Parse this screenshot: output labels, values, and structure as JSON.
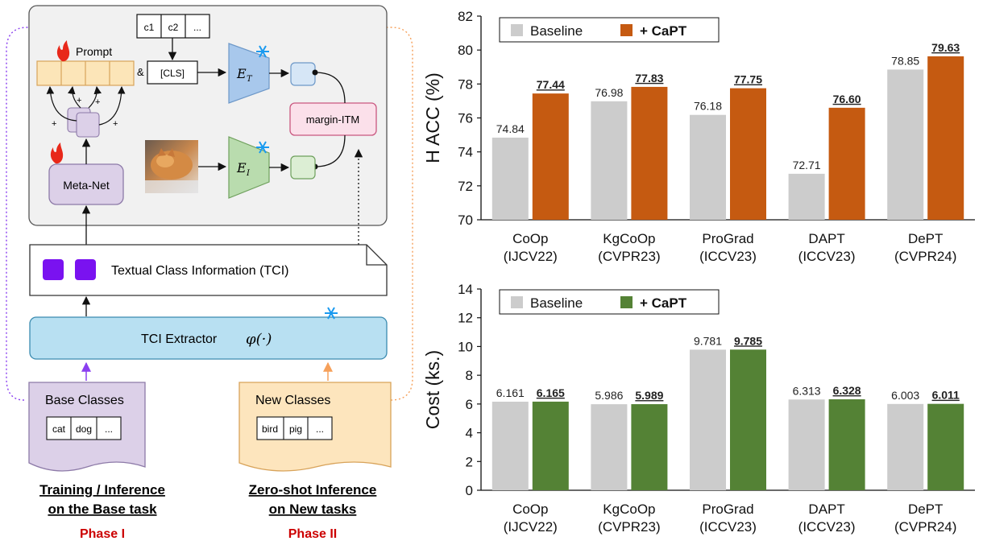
{
  "diagram": {
    "prompt_label": "Prompt",
    "and_symbol": "&",
    "cls_token": "[CLS]",
    "class_tokens": [
      "c1",
      "c2",
      "..."
    ],
    "plus": "+",
    "text_encoder": "E",
    "text_encoder_sub": "T",
    "image_encoder": "E",
    "image_encoder_sub": "I",
    "margin_itm": "margin-ITM",
    "meta_net": "Meta-Net",
    "tci_label": "Textual Class Information (TCI)",
    "extractor_label": "TCI Extractor",
    "extractor_func": "φ(·)",
    "base_title": "Base Classes",
    "base_items": [
      "cat",
      "dog",
      "..."
    ],
    "new_title": "New Classes",
    "new_items": [
      "bird",
      "pig",
      "..."
    ],
    "phase1_line1": "Training / Inference",
    "phase1_line2": "on the Base task",
    "phase1_label": "Phase I",
    "phase2_line1": "Zero-shot Inference",
    "phase2_line2": "on New tasks",
    "phase2_label": "Phase II",
    "colors": {
      "prompt": "#fce5b8",
      "encoder_t": "#a8c8ec",
      "encoder_i": "#b9dcae",
      "margin": "#fbe0ea",
      "meta": "#dcd0e8",
      "tci_square": "#7a12f0",
      "extractor": "#b8e0f2",
      "base": "#dcd0e8",
      "new": "#fde5bd",
      "fire": "#e8281a",
      "snow": "#1a9af0",
      "phase": "#cc0000"
    }
  },
  "chart_data": [
    {
      "type": "bar",
      "ylabel": "H ACC (%)",
      "ylim": [
        70,
        82
      ],
      "yticks": [
        70,
        72,
        74,
        76,
        78,
        80,
        82
      ],
      "categories": [
        "CoOp\n(IJCV22)",
        "KgCoOp\n(CVPR23)",
        "ProGrad\n(ICCV23)",
        "DAPT\n(ICCV23)",
        "DePT\n(CVPR24)"
      ],
      "series": [
        {
          "name": "Baseline",
          "values": [
            74.84,
            76.98,
            76.18,
            72.71,
            78.85
          ],
          "color": "#cccccc",
          "labels": [
            "74.84",
            "76.98",
            "76.18",
            "72.71",
            "78.85"
          ]
        },
        {
          "name": "+ CaPT",
          "values": [
            77.44,
            77.83,
            77.75,
            76.6,
            79.63
          ],
          "color": "#c55a11",
          "labels": [
            "77.44",
            "77.83",
            "77.75",
            "76.60",
            "79.63"
          ]
        }
      ],
      "legend": "top-left"
    },
    {
      "type": "bar",
      "ylabel": "Cost (ks.)",
      "ylim": [
        0,
        14
      ],
      "yticks": [
        0,
        2,
        4,
        6,
        8,
        10,
        12,
        14
      ],
      "categories": [
        "CoOp\n(IJCV22)",
        "KgCoOp\n(CVPR23)",
        "ProGrad\n(ICCV23)",
        "DAPT\n(ICCV23)",
        "DePT\n(CVPR24)"
      ],
      "series": [
        {
          "name": "Baseline",
          "values": [
            6.161,
            5.986,
            9.781,
            6.313,
            6.003
          ],
          "color": "#cccccc",
          "labels": [
            "6.161",
            "5.986",
            "9.781",
            "6.313",
            "6.003"
          ]
        },
        {
          "name": "+ CaPT",
          "values": [
            6.165,
            5.989,
            9.785,
            6.328,
            6.011
          ],
          "color": "#548235",
          "labels": [
            "6.165",
            "5.989",
            "9.785",
            "6.328",
            "6.011"
          ]
        }
      ],
      "legend": "top-left"
    }
  ]
}
